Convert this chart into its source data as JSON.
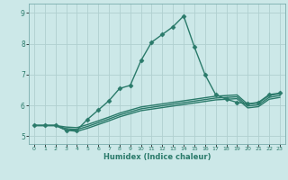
{
  "title": "",
  "xlabel": "Humidex (Indice chaleur)",
  "ylabel": "",
  "background_color": "#cce8e8",
  "grid_color": "#b0d0d0",
  "line_color": "#2a7a6a",
  "xlim": [
    -0.5,
    23.5
  ],
  "ylim": [
    4.75,
    9.3
  ],
  "xticks": [
    0,
    1,
    2,
    3,
    4,
    5,
    6,
    7,
    8,
    9,
    10,
    11,
    12,
    13,
    14,
    15,
    16,
    17,
    18,
    19,
    20,
    21,
    22,
    23
  ],
  "yticks": [
    5,
    6,
    7,
    8,
    9
  ],
  "series": [
    {
      "x": [
        0,
        1,
        2,
        3,
        4,
        5,
        6,
        7,
        8,
        9,
        10,
        11,
        12,
        13,
        14,
        15,
        16,
        17,
        18,
        19,
        20,
        21,
        22,
        23
      ],
      "y": [
        5.35,
        5.35,
        5.35,
        5.2,
        5.2,
        5.55,
        5.85,
        6.15,
        6.55,
        6.65,
        7.45,
        8.05,
        8.3,
        8.55,
        8.9,
        7.9,
        7.0,
        6.35,
        6.2,
        6.1,
        6.05,
        6.1,
        6.35,
        6.4
      ],
      "marker": "D",
      "markersize": 2.5,
      "linewidth": 1.0,
      "has_marker": true
    },
    {
      "x": [
        0,
        1,
        2,
        3,
        4,
        5,
        6,
        7,
        8,
        9,
        10,
        11,
        12,
        13,
        14,
        15,
        16,
        17,
        18,
        19,
        20,
        21,
        22,
        23
      ],
      "y": [
        5.35,
        5.35,
        5.35,
        5.3,
        5.28,
        5.38,
        5.5,
        5.62,
        5.75,
        5.85,
        5.95,
        6.0,
        6.05,
        6.1,
        6.15,
        6.2,
        6.25,
        6.3,
        6.32,
        6.34,
        6.04,
        6.08,
        6.32,
        6.38
      ],
      "marker": null,
      "markersize": 0,
      "linewidth": 1.0,
      "has_marker": false
    },
    {
      "x": [
        0,
        1,
        2,
        3,
        4,
        5,
        6,
        7,
        8,
        9,
        10,
        11,
        12,
        13,
        14,
        15,
        16,
        17,
        18,
        19,
        20,
        21,
        22,
        23
      ],
      "y": [
        5.35,
        5.35,
        5.35,
        5.25,
        5.22,
        5.32,
        5.44,
        5.56,
        5.69,
        5.79,
        5.89,
        5.94,
        5.99,
        6.04,
        6.09,
        6.14,
        6.19,
        6.24,
        6.26,
        6.28,
        5.98,
        6.02,
        6.26,
        6.32
      ],
      "marker": null,
      "markersize": 0,
      "linewidth": 1.0,
      "has_marker": false
    },
    {
      "x": [
        0,
        1,
        2,
        3,
        4,
        5,
        6,
        7,
        8,
        9,
        10,
        11,
        12,
        13,
        14,
        15,
        16,
        17,
        18,
        19,
        20,
        21,
        22,
        23
      ],
      "y": [
        5.35,
        5.35,
        5.35,
        5.2,
        5.16,
        5.26,
        5.38,
        5.5,
        5.63,
        5.73,
        5.83,
        5.88,
        5.93,
        5.98,
        6.03,
        6.08,
        6.13,
        6.18,
        6.2,
        6.22,
        5.92,
        5.96,
        6.2,
        6.26
      ],
      "marker": null,
      "markersize": 0,
      "linewidth": 1.0,
      "has_marker": false
    }
  ]
}
